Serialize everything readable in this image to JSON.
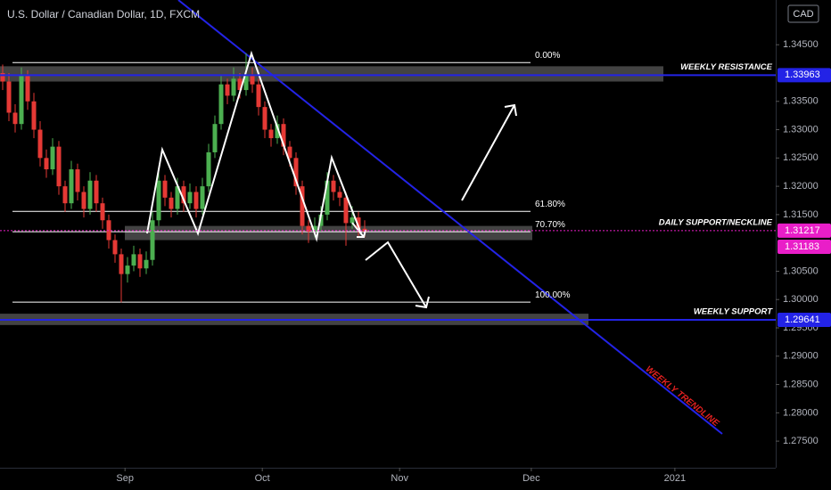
{
  "chart_data": {
    "type": "candlestick",
    "title": "U.S. Dollar / Canadian Dollar, 1D, FXCM",
    "currency": "CAD",
    "xlim": [
      -0.43,
      123.86
    ],
    "xticks": [
      {
        "value": 19.6,
        "label": "Sep"
      },
      {
        "value": 41.6,
        "label": "Oct"
      },
      {
        "value": 63.6,
        "label": "Nov"
      },
      {
        "value": 84.7,
        "label": "Dec"
      },
      {
        "value": 107.7,
        "label": "2021"
      }
    ],
    "ylim": [
      1.2703,
      1.3529
    ],
    "yticks": [
      {
        "value": 1.345,
        "label": "1.34500"
      },
      {
        "value": 1.335,
        "label": "1.33500"
      },
      {
        "value": 1.33,
        "label": "1.33000"
      },
      {
        "value": 1.325,
        "label": "1.32500"
      },
      {
        "value": 1.32,
        "label": "1.32000"
      },
      {
        "value": 1.315,
        "label": "1.31500"
      },
      {
        "value": 1.305,
        "label": "1.30500"
      },
      {
        "value": 1.3,
        "label": "1.30000"
      },
      {
        "value": 1.295,
        "label": "1.29500"
      },
      {
        "value": 1.29,
        "label": "1.29000"
      },
      {
        "value": 1.285,
        "label": "1.28500"
      },
      {
        "value": 1.28,
        "label": "1.28000"
      },
      {
        "value": 1.275,
        "label": "1.27500"
      }
    ],
    "up_color": "#4caf50",
    "down_color": "#e53935",
    "open": [
      1.34,
      1.3385,
      1.333,
      1.331,
      1.3395,
      1.335,
      1.33,
      1.325,
      1.323,
      1.327,
      1.32,
      1.317,
      1.323,
      1.319,
      1.316,
      1.321,
      1.317,
      1.314,
      1.3105,
      1.308,
      1.3045,
      1.306,
      1.308,
      1.3055,
      1.307,
      1.314,
      1.321,
      1.318,
      1.316,
      1.32,
      1.317,
      1.319,
      1.316,
      1.32,
      1.326,
      1.331,
      1.338,
      1.336,
      1.339,
      1.337,
      1.3395,
      1.338,
      1.334,
      1.33,
      1.3285,
      1.331,
      1.327,
      1.325,
      1.32,
      1.313,
      1.312,
      1.313,
      1.315,
      1.321,
      1.319,
      1.318,
      1.3135,
      1.3145,
      1.3125
    ],
    "high": [
      1.3415,
      1.34,
      1.3345,
      1.341,
      1.3405,
      1.3365,
      1.3315,
      1.3265,
      1.3285,
      1.328,
      1.321,
      1.3245,
      1.324,
      1.32,
      1.3225,
      1.322,
      1.318,
      1.315,
      1.3115,
      1.309,
      1.3075,
      1.3095,
      1.309,
      1.3085,
      1.3155,
      1.323,
      1.322,
      1.319,
      1.3215,
      1.321,
      1.3205,
      1.32,
      1.3215,
      1.3275,
      1.3325,
      1.3395,
      1.339,
      1.341,
      1.34,
      1.3435,
      1.341,
      1.339,
      1.335,
      1.331,
      1.3325,
      1.332,
      1.328,
      1.326,
      1.321,
      1.314,
      1.3145,
      1.3165,
      1.3225,
      1.322,
      1.32,
      1.319,
      1.3165,
      1.3155,
      1.314
    ],
    "low": [
      1.337,
      1.3315,
      1.3295,
      1.33,
      1.3335,
      1.3285,
      1.3235,
      1.3215,
      1.322,
      1.3185,
      1.3155,
      1.316,
      1.3175,
      1.3145,
      1.315,
      1.3155,
      1.3125,
      1.309,
      1.3065,
      1.2995,
      1.303,
      1.305,
      1.304,
      1.3045,
      1.306,
      1.313,
      1.3165,
      1.3145,
      1.315,
      1.3155,
      1.316,
      1.3145,
      1.315,
      1.319,
      1.325,
      1.33,
      1.3345,
      1.335,
      1.3355,
      1.336,
      1.3365,
      1.3325,
      1.3285,
      1.327,
      1.3275,
      1.3255,
      1.3235,
      1.3185,
      1.3115,
      1.31,
      1.311,
      1.312,
      1.314,
      1.3175,
      1.3165,
      1.3095,
      1.3125,
      1.311,
      1.311
    ],
    "close": [
      1.3385,
      1.333,
      1.331,
      1.3395,
      1.335,
      1.33,
      1.325,
      1.323,
      1.327,
      1.32,
      1.317,
      1.323,
      1.319,
      1.316,
      1.321,
      1.317,
      1.314,
      1.3105,
      1.308,
      1.3045,
      1.306,
      1.308,
      1.3055,
      1.307,
      1.314,
      1.321,
      1.318,
      1.316,
      1.32,
      1.317,
      1.319,
      1.316,
      1.32,
      1.326,
      1.331,
      1.338,
      1.336,
      1.339,
      1.337,
      1.3395,
      1.338,
      1.334,
      1.33,
      1.3285,
      1.331,
      1.327,
      1.325,
      1.32,
      1.313,
      1.312,
      1.313,
      1.315,
      1.321,
      1.319,
      1.318,
      1.3135,
      1.3145,
      1.3125,
      1.312
    ],
    "levels": [
      {
        "name": "WEEKLY RESISTANCE",
        "value": 1.33963,
        "color": "#2323e6"
      },
      {
        "name": "DAILY SUPPORT/NECKLINE",
        "value": 1.31217,
        "color": "#e91ec8"
      },
      {
        "name": "WEEKLY SUPPORT",
        "value": 1.29641,
        "color": "#2323e6"
      }
    ],
    "current_price": {
      "value": 1.31183,
      "color": "#e91ec8"
    },
    "zones": [
      {
        "from": 1.3385,
        "to": 1.3412
      },
      {
        "from": 1.3105,
        "to": 1.313
      },
      {
        "from": 1.2955,
        "to": 1.2975
      }
    ],
    "fib": [
      {
        "label": "0.00%",
        "value": 1.34185
      },
      {
        "label": "61.80%",
        "value": 1.31558
      },
      {
        "label": "70.70%",
        "value": 1.31197
      },
      {
        "label": "100.00%",
        "value": 1.29954
      }
    ],
    "trendline_label": "WEEKLY TRENDLINE"
  }
}
